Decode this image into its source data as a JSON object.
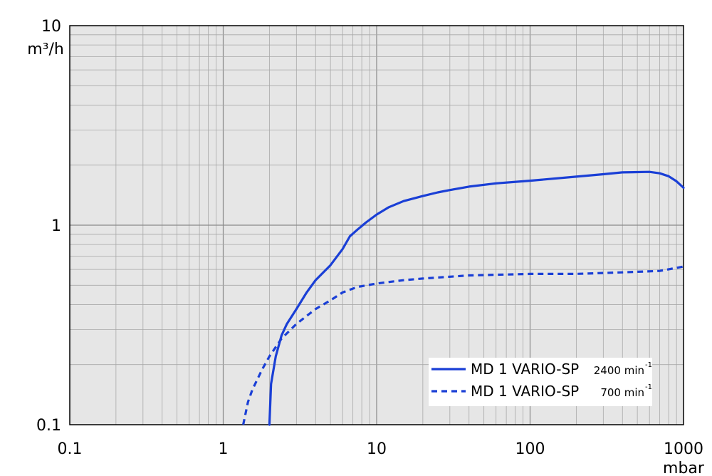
{
  "chart_data": {
    "type": "line",
    "x_scale": "log",
    "y_scale": "log",
    "xlim": [
      0.1,
      1000
    ],
    "ylim": [
      0.1,
      10
    ],
    "grid": true,
    "background": "#e6e6e6",
    "x_ticks": [
      "0.1",
      "1",
      "10",
      "100",
      "1000"
    ],
    "y_ticks": [
      "0.1",
      "1",
      "10"
    ],
    "xlabel": "mbar",
    "ylabel": "m³/h",
    "legend_position": "bottom-right",
    "series": [
      {
        "name": "MD 1 VARIO-SP",
        "speed": "2400 min",
        "speed_sup": "-1",
        "style": "solid",
        "color": "#1a3fd6",
        "points": [
          [
            2.0,
            0.1
          ],
          [
            2.05,
            0.16
          ],
          [
            2.2,
            0.22
          ],
          [
            2.4,
            0.28
          ],
          [
            2.6,
            0.32
          ],
          [
            3.0,
            0.38
          ],
          [
            3.5,
            0.46
          ],
          [
            4.0,
            0.53
          ],
          [
            5.0,
            0.63
          ],
          [
            6.0,
            0.76
          ],
          [
            6.7,
            0.88
          ],
          [
            7.5,
            0.95
          ],
          [
            8.5,
            1.03
          ],
          [
            10.0,
            1.13
          ],
          [
            12.0,
            1.23
          ],
          [
            15.0,
            1.32
          ],
          [
            20.0,
            1.4
          ],
          [
            25.0,
            1.46
          ],
          [
            30.0,
            1.5
          ],
          [
            40.0,
            1.56
          ],
          [
            60.0,
            1.62
          ],
          [
            100.0,
            1.67
          ],
          [
            200.0,
            1.75
          ],
          [
            300.0,
            1.8
          ],
          [
            400.0,
            1.84
          ],
          [
            600.0,
            1.85
          ],
          [
            700.0,
            1.82
          ],
          [
            800.0,
            1.76
          ],
          [
            900.0,
            1.66
          ],
          [
            1000.0,
            1.54
          ]
        ]
      },
      {
        "name": "MD 1 VARIO-SP",
        "speed": "700 min",
        "speed_sup": "-1",
        "style": "dashed",
        "color": "#1a3fd6",
        "points": [
          [
            1.35,
            0.1
          ],
          [
            1.45,
            0.13
          ],
          [
            1.55,
            0.15
          ],
          [
            1.8,
            0.19
          ],
          [
            2.0,
            0.22
          ],
          [
            2.4,
            0.27
          ],
          [
            3.0,
            0.32
          ],
          [
            4.0,
            0.38
          ],
          [
            5.0,
            0.42
          ],
          [
            6.0,
            0.46
          ],
          [
            7.5,
            0.49
          ],
          [
            10.0,
            0.51
          ],
          [
            15.0,
            0.53
          ],
          [
            20.0,
            0.54
          ],
          [
            40.0,
            0.56
          ],
          [
            100.0,
            0.57
          ],
          [
            200.0,
            0.57
          ],
          [
            400.0,
            0.58
          ],
          [
            700.0,
            0.59
          ],
          [
            1000.0,
            0.62
          ]
        ]
      }
    ]
  }
}
